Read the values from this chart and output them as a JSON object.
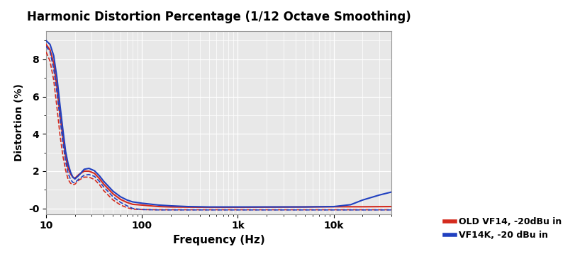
{
  "title": "Harmonic Distortion Percentage (1/12 Octave Smoothing)",
  "xlabel": "Frequency (Hz)",
  "ylabel": "Distortion (%)",
  "xlim": [
    10,
    40000
  ],
  "ylim": [
    -0.3,
    9.5
  ],
  "yticks": [
    0,
    2,
    4,
    6,
    8
  ],
  "ytick_labels": [
    "-0",
    "2",
    "4",
    "6",
    "8"
  ],
  "bg_color": "#e8e8e8",
  "grid_color": "#ffffff",
  "red_color": "#d42b1e",
  "blue_color": "#2040c0",
  "legend": [
    {
      "label": "OLD VF14, -20dBu in"
    },
    {
      "label": "VF14K, -20 dBu in"
    }
  ],
  "red_solid_x": [
    10,
    11,
    12,
    13,
    14,
    15,
    16,
    17,
    18,
    19,
    20,
    22,
    25,
    28,
    32,
    36,
    40,
    50,
    60,
    70,
    80,
    100,
    150,
    200,
    300,
    500,
    700,
    1000,
    2000,
    5000,
    10000,
    20000,
    40000
  ],
  "red_solid_y": [
    8.8,
    8.5,
    7.8,
    6.5,
    5.0,
    3.8,
    2.8,
    2.15,
    1.85,
    1.68,
    1.62,
    1.82,
    2.0,
    2.0,
    1.88,
    1.6,
    1.3,
    0.78,
    0.48,
    0.32,
    0.22,
    0.18,
    0.1,
    0.08,
    0.07,
    0.06,
    0.06,
    0.06,
    0.07,
    0.08,
    0.09,
    0.09,
    0.1
  ],
  "red_dashed_x": [
    10,
    11,
    12,
    13,
    14,
    15,
    16,
    17,
    18,
    19,
    20,
    22,
    25,
    28,
    32,
    36,
    40,
    50,
    60,
    70,
    80,
    100,
    150,
    200,
    300,
    500,
    700,
    1000,
    2000,
    5000,
    10000,
    20000,
    40000
  ],
  "red_dashed_y": [
    8.4,
    7.9,
    6.9,
    5.4,
    3.9,
    2.8,
    2.05,
    1.55,
    1.35,
    1.28,
    1.3,
    1.52,
    1.68,
    1.68,
    1.55,
    1.28,
    0.95,
    0.45,
    0.18,
    0.04,
    -0.04,
    -0.06,
    -0.07,
    -0.07,
    -0.07,
    -0.07,
    -0.07,
    -0.07,
    -0.07,
    -0.07,
    -0.07,
    -0.07,
    -0.07
  ],
  "blue_solid_x": [
    10,
    11,
    12,
    13,
    14,
    15,
    16,
    17,
    18,
    19,
    20,
    22,
    25,
    28,
    32,
    36,
    40,
    50,
    60,
    70,
    80,
    100,
    150,
    200,
    300,
    500,
    700,
    1000,
    2000,
    5000,
    10000,
    15000,
    20000,
    30000,
    40000
  ],
  "blue_solid_y": [
    9.0,
    8.8,
    8.2,
    7.0,
    5.5,
    4.2,
    3.05,
    2.38,
    1.95,
    1.68,
    1.58,
    1.78,
    2.1,
    2.15,
    2.02,
    1.75,
    1.45,
    0.92,
    0.62,
    0.45,
    0.35,
    0.28,
    0.18,
    0.14,
    0.1,
    0.08,
    0.08,
    0.08,
    0.08,
    0.08,
    0.1,
    0.2,
    0.45,
    0.72,
    0.88
  ],
  "blue_dashed_x": [
    10,
    11,
    12,
    13,
    14,
    15,
    16,
    17,
    18,
    19,
    20,
    22,
    25,
    28,
    32,
    36,
    40,
    50,
    60,
    70,
    80,
    100,
    150,
    200,
    300,
    500,
    700,
    1000,
    2000,
    5000,
    10000,
    20000,
    40000
  ],
  "blue_dashed_y": [
    8.7,
    8.4,
    7.5,
    6.2,
    4.8,
    3.5,
    2.5,
    1.88,
    1.55,
    1.4,
    1.38,
    1.58,
    1.78,
    1.82,
    1.72,
    1.45,
    1.15,
    0.62,
    0.32,
    0.14,
    0.0,
    -0.06,
    -0.08,
    -0.08,
    -0.08,
    -0.08,
    -0.08,
    -0.08,
    -0.08,
    -0.08,
    -0.08,
    -0.08,
    -0.08
  ]
}
